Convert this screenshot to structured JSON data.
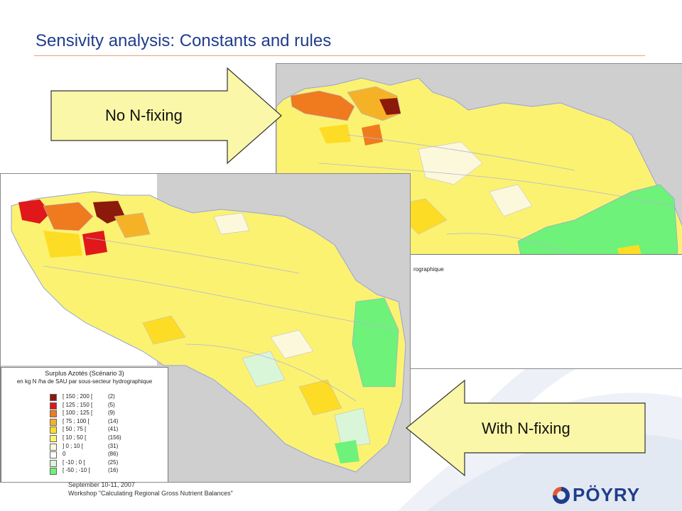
{
  "slide": {
    "title": "Sensivity analysis: Constants and rules"
  },
  "arrows": {
    "top_label": "No N-fixing",
    "bottom_label": "With N-fixing"
  },
  "map_top": {
    "legend_fragment": "rographique"
  },
  "legend": {
    "title": "Surplus Azotés (Scénario 3)",
    "subtitle": "en kg N /ha de SAU par sous-secteur hydrographique",
    "items": [
      {
        "range": "[ 150 ; 200 [",
        "count": "(2)",
        "color": "#8b1a0a"
      },
      {
        "range": "[ 125 ; 150 [",
        "count": "(5)",
        "color": "#e0181b"
      },
      {
        "range": "[ 100 ; 125 [",
        "count": "(9)",
        "color": "#f07a1e"
      },
      {
        "range": "[ 75 ; 100 [",
        "count": "(14)",
        "color": "#f6b227"
      },
      {
        "range": "[ 50 ; 75 [",
        "count": "(41)",
        "color": "#fddc25"
      },
      {
        "range": "[ 10 ; 50 [",
        "count": "(156)",
        "color": "#fbf271"
      },
      {
        "range": "] 0 ; 10 [",
        "count": "(31)",
        "color": "#fbf8dc"
      },
      {
        "range": "0",
        "count": "(86)",
        "color": "#ffffff"
      },
      {
        "range": "[ -10 ; 0 [",
        "count": "(25)",
        "color": "#d9f6d9"
      },
      {
        "range": "[ -50 ; -10 [",
        "count": "(16)",
        "color": "#6ef27a"
      }
    ]
  },
  "footer": {
    "line1": "September 10-11, 2007",
    "line2": "Workshop \"Calculating Regional Gross Nutrient Balances\""
  },
  "logo": {
    "text": "PÖYRY"
  },
  "colors": {
    "title": "#1f3d8a",
    "sea": "#cfcfcf",
    "arrow_fill": "#fbf7a8",
    "land_yellow": "#fbf271"
  }
}
